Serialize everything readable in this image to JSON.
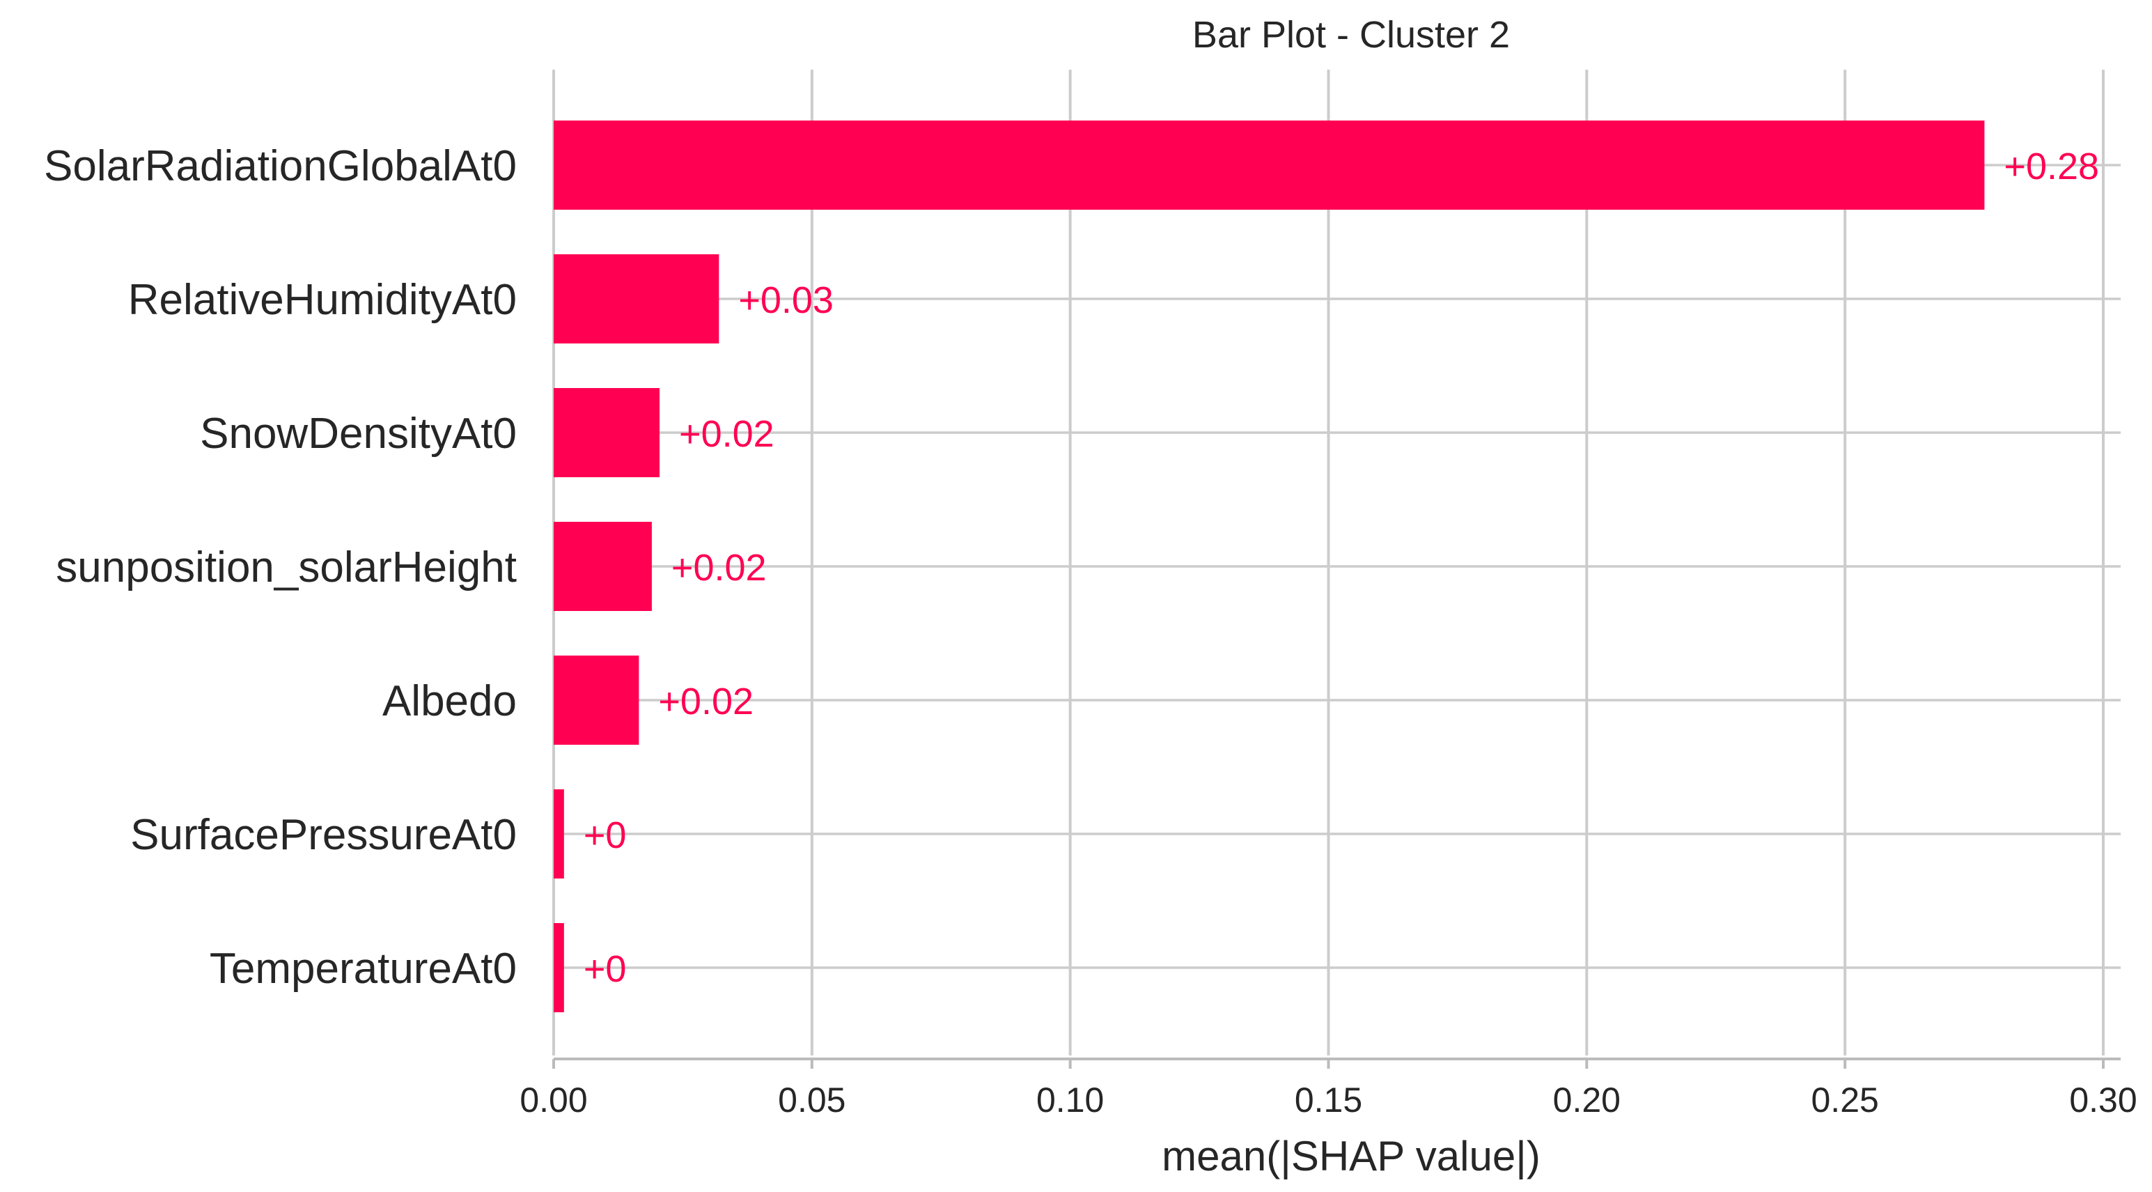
{
  "colors": {
    "bar": "#ff0052",
    "value_label": "#ff0052"
  },
  "chart_data": {
    "type": "bar",
    "orientation": "horizontal",
    "title": "Bar Plot - Cluster 2",
    "xlabel": "mean(|SHAP value|)",
    "ylabel": "",
    "xlim": [
      0,
      0.3
    ],
    "xticks": [
      0.0,
      0.05,
      0.1,
      0.15,
      0.2,
      0.25,
      0.3
    ],
    "xtick_labels": [
      "0.00",
      "0.05",
      "0.10",
      "0.15",
      "0.20",
      "0.25",
      "0.30"
    ],
    "grid": true,
    "categories": [
      "SolarRadiationGlobalAt0",
      "RelativeHumidityAt0",
      "SnowDensityAt0",
      "sunposition_solarHeight",
      "Albedo",
      "SurfacePressureAt0",
      "TemperatureAt0"
    ],
    "values": [
      0.277,
      0.032,
      0.0205,
      0.019,
      0.0165,
      0.002,
      0.002
    ],
    "value_labels": [
      "+0.28",
      "+0.03",
      "+0.02",
      "+0.02",
      "+0.02",
      "+0",
      "+0"
    ]
  }
}
